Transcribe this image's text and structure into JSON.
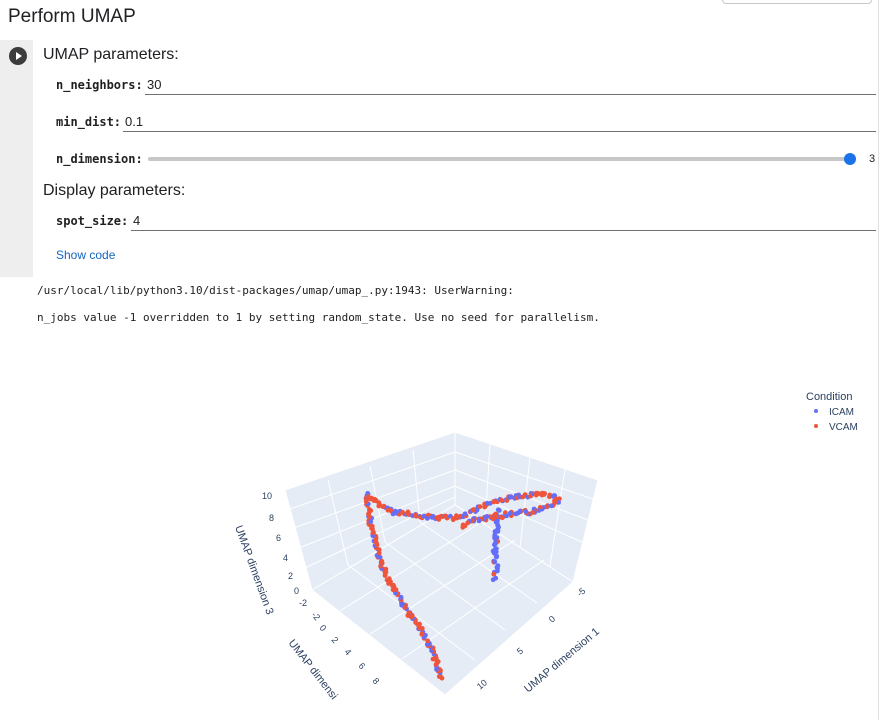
{
  "page_title": "Perform UMAP",
  "umap_params": {
    "title": "UMAP parameters:",
    "n_neighbors": {
      "label": "n_neighbors:",
      "value": "30"
    },
    "min_dist": {
      "label": "min_dist:",
      "value": "0.1"
    },
    "n_dimension": {
      "label": "n_dimension:",
      "value": "3",
      "level_fraction": 1.0
    }
  },
  "display_params": {
    "title": "Display parameters:",
    "spot_size": {
      "label": "spot_size:",
      "value": "4"
    }
  },
  "show_code": "Show code",
  "output": {
    "line1": "/usr/local/lib/python3.10/dist-packages/umap/umap_.py:1943: UserWarning:",
    "line2": "n_jobs value -1 overridden to 1 by setting random_state. Use no seed for parallelism."
  },
  "legend": {
    "title": "Condition",
    "items": [
      {
        "label": "ICAM",
        "color": "#636efa"
      },
      {
        "label": "VCAM",
        "color": "#ef553b"
      }
    ]
  },
  "chart_data": {
    "type": "scatter",
    "axes": {
      "x": {
        "title": "UMAP dimension 1",
        "ticks": [
          "10",
          "5",
          "0",
          "-5"
        ]
      },
      "y": {
        "title": "UMAP dimensi",
        "ticks": [
          "-2",
          "0",
          "2",
          "4",
          "6",
          "8"
        ]
      },
      "z": {
        "title": "UMAP dimension 3",
        "ticks": [
          "10",
          "8",
          "6",
          "4",
          "2",
          "0",
          "-2"
        ]
      }
    },
    "series": [
      {
        "name": "ICAM",
        "color": "#636efa"
      },
      {
        "name": "VCAM",
        "color": "#ef553b"
      }
    ]
  }
}
